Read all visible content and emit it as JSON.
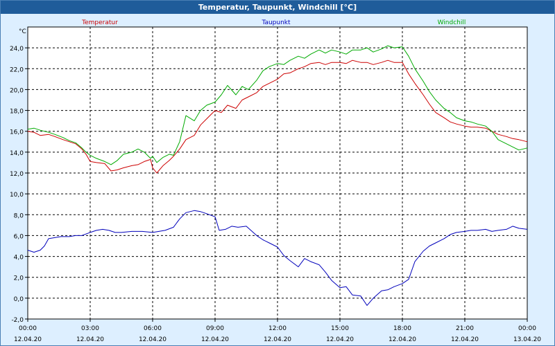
{
  "window": {
    "title": "Temperatur, Taupunkt, Windchill [°C]"
  },
  "chart_data": {
    "type": "line",
    "title": "Temperatur, Taupunkt, Windchill [°C]",
    "ylabel": "°C",
    "xlabel": "",
    "ylim": [
      -2,
      26
    ],
    "yticks": [
      -2,
      0,
      2,
      4,
      6,
      8,
      10,
      12,
      14,
      16,
      18,
      20,
      22,
      24
    ],
    "ytick_labels": [
      "-2,0",
      "0,0",
      "2,0",
      "4,0",
      "6,0",
      "8,0",
      "10,0",
      "12,0",
      "14,0",
      "16,0",
      "18,0",
      "20,0",
      "22,0",
      "24,0"
    ],
    "xlim": [
      0,
      24
    ],
    "xticks": [
      0,
      3,
      6,
      9,
      12,
      15,
      18,
      21,
      24
    ],
    "xtick_times": [
      "00:00",
      "03:00",
      "06:00",
      "09:00",
      "12:00",
      "15:00",
      "18:00",
      "21:00",
      "00:00"
    ],
    "xtick_dates": [
      "12.04.20",
      "12.04.20",
      "12.04.20",
      "12.04.20",
      "12.04.20",
      "12.04.20",
      "12.04.20",
      "12.04.20",
      "13.04.20"
    ],
    "grid": true,
    "legend": "top, above plot",
    "series": [
      {
        "name": "Temperatur",
        "color": "#cc0000",
        "x": [
          0,
          0.3,
          0.6,
          1,
          1.3,
          1.7,
          2,
          2.3,
          2.6,
          2.8,
          3,
          3.3,
          3.7,
          4,
          4.3,
          4.6,
          5,
          5.3,
          5.6,
          5.9,
          6,
          6.2,
          6.5,
          6.8,
          7,
          7.3,
          7.6,
          8,
          8.3,
          8.6,
          9,
          9.3,
          9.6,
          10,
          10.3,
          10.6,
          11,
          11.3,
          11.6,
          12,
          12.3,
          12.6,
          13,
          13.3,
          13.6,
          14,
          14.3,
          14.6,
          15,
          15.3,
          15.6,
          16,
          16.3,
          16.6,
          17,
          17.3,
          17.6,
          18,
          18.3,
          18.6,
          19,
          19.3,
          19.6,
          20,
          20.3,
          20.6,
          21,
          21.3,
          21.6,
          22,
          22.3,
          22.6,
          23,
          23.3,
          23.6,
          24
        ],
        "values": [
          16.0,
          15.9,
          15.6,
          15.7,
          15.5,
          15.2,
          15.0,
          14.8,
          14.3,
          13.8,
          13.1,
          13.0,
          12.9,
          12.2,
          12.3,
          12.5,
          12.7,
          12.8,
          13.1,
          13.3,
          12.5,
          12.0,
          12.7,
          13.2,
          13.6,
          14.3,
          15.2,
          15.6,
          16.6,
          17.2,
          18.0,
          17.8,
          18.5,
          18.2,
          19.0,
          19.3,
          19.7,
          20.3,
          20.6,
          21.0,
          21.5,
          21.6,
          22.0,
          22.2,
          22.5,
          22.6,
          22.4,
          22.6,
          22.6,
          22.5,
          22.8,
          22.6,
          22.6,
          22.4,
          22.6,
          22.8,
          22.6,
          22.6,
          21.5,
          20.6,
          19.5,
          18.6,
          17.8,
          17.3,
          16.9,
          16.7,
          16.5,
          16.4,
          16.4,
          16.3,
          16.0,
          15.7,
          15.5,
          15.3,
          15.2,
          15.0
        ]
      },
      {
        "name": "Taupunkt",
        "color": "#0000bb",
        "x": [
          0,
          0.3,
          0.6,
          0.8,
          1,
          1.3,
          1.6,
          2,
          2.3,
          2.6,
          3,
          3.3,
          3.6,
          3.9,
          4.2,
          4.5,
          5,
          5.5,
          6,
          6.3,
          6.6,
          7,
          7.3,
          7.6,
          8,
          8.3,
          8.6,
          9,
          9.2,
          9.5,
          9.8,
          10.1,
          10.5,
          11,
          11.3,
          11.6,
          12,
          12.3,
          12.6,
          13,
          13.3,
          13.6,
          14,
          14.3,
          14.6,
          15,
          15.3,
          15.6,
          16,
          16.3,
          16.6,
          17,
          17.3,
          17.6,
          18,
          18.3,
          18.6,
          19,
          19.3,
          19.6,
          20,
          20.3,
          20.6,
          21,
          21.3,
          21.6,
          22,
          22.3,
          22.6,
          23,
          23.3,
          23.6,
          24
        ],
        "values": [
          4.6,
          4.4,
          4.6,
          5.0,
          5.7,
          5.8,
          5.9,
          5.9,
          6.0,
          6.0,
          6.3,
          6.5,
          6.6,
          6.5,
          6.3,
          6.3,
          6.4,
          6.4,
          6.3,
          6.4,
          6.5,
          6.8,
          7.6,
          8.2,
          8.4,
          8.3,
          8.1,
          7.8,
          6.5,
          6.6,
          6.9,
          6.8,
          6.9,
          6.0,
          5.6,
          5.3,
          4.9,
          4.1,
          3.6,
          3.0,
          3.8,
          3.5,
          3.2,
          2.5,
          1.7,
          1.0,
          1.1,
          0.3,
          0.2,
          -0.7,
          0.0,
          0.7,
          0.8,
          1.1,
          1.4,
          1.8,
          3.5,
          4.5,
          5.0,
          5.3,
          5.7,
          6.1,
          6.3,
          6.4,
          6.5,
          6.5,
          6.6,
          6.4,
          6.5,
          6.6,
          6.9,
          6.7,
          6.6
        ]
      },
      {
        "name": "Windchill",
        "color": "#00aa00",
        "x": [
          0,
          0.3,
          0.6,
          1,
          1.3,
          1.7,
          2,
          2.3,
          2.6,
          2.8,
          3,
          3.3,
          3.7,
          4,
          4.3,
          4.6,
          5,
          5.3,
          5.6,
          5.9,
          6,
          6.2,
          6.5,
          6.8,
          7,
          7.3,
          7.6,
          8,
          8.3,
          8.6,
          9,
          9.3,
          9.6,
          10,
          10.3,
          10.6,
          11,
          11.3,
          11.6,
          12,
          12.3,
          12.6,
          13,
          13.3,
          13.6,
          14,
          14.3,
          14.6,
          15,
          15.3,
          15.6,
          16,
          16.3,
          16.6,
          17,
          17.3,
          17.6,
          18,
          18.3,
          18.6,
          19,
          19.3,
          19.6,
          20,
          20.3,
          20.6,
          21,
          21.3,
          21.6,
          22,
          22.3,
          22.6,
          23,
          23.3,
          23.6,
          24
        ],
        "values": [
          16.2,
          16.3,
          16.1,
          15.9,
          15.7,
          15.4,
          15.1,
          14.9,
          14.4,
          14.0,
          13.7,
          13.4,
          13.1,
          12.8,
          13.2,
          13.8,
          14.0,
          14.3,
          14.0,
          13.4,
          13.6,
          13.0,
          13.5,
          13.8,
          13.7,
          15.0,
          17.5,
          17.0,
          18.0,
          18.5,
          18.8,
          19.5,
          20.4,
          19.5,
          20.3,
          20.0,
          20.9,
          21.8,
          22.2,
          22.5,
          22.4,
          22.8,
          23.2,
          23.0,
          23.4,
          23.8,
          23.5,
          23.8,
          23.6,
          23.4,
          23.8,
          23.8,
          24.0,
          23.6,
          23.9,
          24.2,
          24.0,
          24.1,
          23.2,
          22.0,
          20.8,
          19.8,
          19.0,
          18.2,
          17.8,
          17.3,
          17.0,
          16.9,
          16.7,
          16.5,
          16.0,
          15.2,
          14.8,
          14.5,
          14.2,
          14.4
        ]
      }
    ]
  }
}
